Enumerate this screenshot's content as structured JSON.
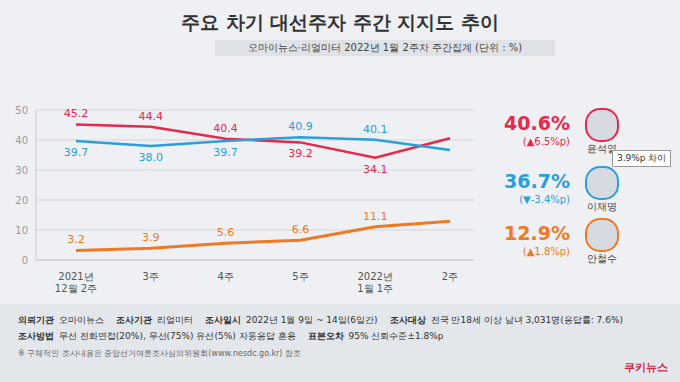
{
  "chart_data": {
    "type": "line",
    "title": "주요 차기 대선주자 주간 지지도 추이",
    "subtitle": "오마이뉴스·리얼미터 2022년 1월 2주차 주간집계 (단위 : %)",
    "categories": [
      "2021년\n12월 2주",
      "3주",
      "4주",
      "5주",
      "2022년\n1월 1주",
      "2주"
    ],
    "series": [
      {
        "name": "윤석열",
        "color": "#e6294b",
        "values": [
          45.2,
          44.4,
          40.4,
          39.2,
          34.1,
          40.6
        ],
        "value_labels": [
          "45.2",
          "44.4",
          "40.4",
          "39.2",
          "34.1",
          "40.6%"
        ],
        "change": "(▲6.5%p)"
      },
      {
        "name": "이재명",
        "color": "#2b9fdc",
        "values": [
          39.7,
          38.0,
          39.7,
          40.9,
          40.1,
          36.7
        ],
        "value_labels": [
          "39.7",
          "38.0",
          "39.7",
          "40.9",
          "40.1",
          "36.7%"
        ],
        "change": "(▼-3.4%p)"
      },
      {
        "name": "안철수",
        "color": "#f07a24",
        "values": [
          3.2,
          3.9,
          5.6,
          6.6,
          11.1,
          12.9
        ],
        "value_labels": [
          "3.2",
          "3.9",
          "5.6",
          "6.6",
          "11.1",
          "12.9%"
        ],
        "change": "(▲1.8%p)"
      }
    ],
    "ylim": [
      0,
      50
    ],
    "yticks": [
      0,
      10,
      20,
      30,
      40,
      50
    ],
    "grid": true,
    "data_labels": true,
    "annotations": [
      "3.9%p 차이"
    ],
    "footer": {
      "rows": [
        [
          {
            "label": "의뢰기관",
            "value": "오마이뉴스"
          },
          {
            "label": "조사기관",
            "value": "리얼미터"
          },
          {
            "label": "조사일시",
            "value": "2022년 1월 9일 ~ 14일(6일간)"
          },
          {
            "label": "조사대상",
            "value": "전국 만18세 이상 남녀 3,031명(응답률: 7.6%)"
          }
        ],
        [
          {
            "label": "조사방법",
            "value": "무선 전화면접(20%), 무선(75%) 유선(5%) 자동응답 혼용"
          },
          {
            "label": "표본오차",
            "value": "95% 신뢰수준±1.8%p"
          }
        ]
      ],
      "note": "※ 구체적인 조사내용은 중앙선거여론조사심의위원회(www.nesdc.go.kr) 참조",
      "source": "쿠키뉴스"
    }
  }
}
